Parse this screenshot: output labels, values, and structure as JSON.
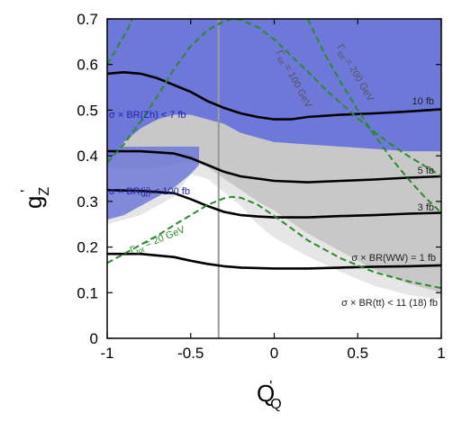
{
  "chart_data": {
    "type": "line",
    "title": "",
    "xlabel": {
      "main": "Q",
      "prime": "'",
      "sub": "Q"
    },
    "ylabel": {
      "main": "g",
      "prime": "'",
      "sub": "Z"
    },
    "xlim": [
      -1,
      1
    ],
    "ylim": [
      0,
      0.7
    ],
    "x_ticks": [
      -1,
      -0.5,
      0,
      0.5,
      1
    ],
    "x_tick_labels": [
      "-1",
      "-0.5",
      "0",
      "0.5",
      "1"
    ],
    "y_ticks": [
      0,
      0.1,
      0.2,
      0.3,
      0.4,
      0.5,
      0.6,
      0.7
    ],
    "y_tick_labels": [
      "0",
      "0.1",
      "0.2",
      "0.3",
      "0.4",
      "0.5",
      "0.6",
      "0.7"
    ],
    "vertical_line_x": -0.333,
    "regions": [
      {
        "label": "σ × BR(Zh) < 7 fb",
        "color": "#6e78d8",
        "lower_x": [
          -1,
          -0.9,
          -0.8,
          -0.7,
          -0.6,
          -0.5,
          -0.4,
          -0.3,
          -0.2,
          -0.1,
          0,
          0.2,
          0.4,
          0.6,
          0.8,
          1
        ],
        "lower_y": [
          0.38,
          0.43,
          0.46,
          0.48,
          0.49,
          0.49,
          0.48,
          0.47,
          0.45,
          0.44,
          0.43,
          0.425,
          0.42,
          0.415,
          0.41,
          0.41
        ]
      },
      {
        "label": "σ × BR(jj) < 100 fb",
        "color": "#6e78d8",
        "lower_x": [
          -1,
          -0.9,
          -0.8,
          -0.7,
          -0.6,
          -0.5,
          -0.45
        ],
        "lower_y": [
          0.26,
          0.27,
          0.29,
          0.31,
          0.33,
          0.36,
          0.38
        ]
      },
      {
        "label": "σ × BR(tt) < 11 (18) fb",
        "color": "#c8c8c8",
        "lower_x": [
          -1,
          -0.8,
          -0.6,
          -0.5,
          -0.4,
          -0.3,
          -0.2,
          -0.1,
          0,
          0.2,
          0.4,
          0.6,
          0.8,
          1
        ],
        "lower_y": [
          0.37,
          0.37,
          0.38,
          0.39,
          0.375,
          0.35,
          0.325,
          0.3,
          0.28,
          0.23,
          0.19,
          0.15,
          0.12,
          0.1
        ],
        "light_lower_x": [
          -1,
          -0.8,
          -0.6,
          -0.5,
          -0.4,
          -0.3,
          -0.2,
          -0.1,
          0,
          0.2,
          0.4,
          0.6,
          0.8,
          1
        ],
        "light_lower_y": [
          0.25,
          0.27,
          0.31,
          0.36,
          0.35,
          0.32,
          0.29,
          0.25,
          0.22,
          0.18,
          0.145,
          0.115,
          0.095,
          0.085
        ],
        "light_color": "#e6e6e6"
      }
    ],
    "series": [
      {
        "label": "10 fb",
        "style": "solid",
        "color": "#000000",
        "x": [
          -1,
          -0.9,
          -0.8,
          -0.7,
          -0.6,
          -0.5,
          -0.4,
          -0.3,
          -0.2,
          -0.1,
          0,
          0.1,
          0.2,
          0.4,
          0.6,
          0.8,
          1
        ],
        "y": [
          0.58,
          0.583,
          0.58,
          0.57,
          0.555,
          0.54,
          0.52,
          0.505,
          0.493,
          0.485,
          0.48,
          0.48,
          0.485,
          0.49,
          0.493,
          0.497,
          0.502
        ]
      },
      {
        "label": "5 fb",
        "style": "solid",
        "color": "#000000",
        "x": [
          -1,
          -0.8,
          -0.6,
          -0.5,
          -0.4,
          -0.3,
          -0.2,
          -0.1,
          0,
          0.2,
          0.4,
          0.6,
          0.8,
          1
        ],
        "y": [
          0.41,
          0.41,
          0.405,
          0.395,
          0.38,
          0.365,
          0.355,
          0.35,
          0.345,
          0.342,
          0.345,
          0.348,
          0.352,
          0.355
        ]
      },
      {
        "label": "3 fb",
        "style": "solid",
        "color": "#000000",
        "x": [
          -1,
          -0.8,
          -0.6,
          -0.5,
          -0.4,
          -0.3,
          -0.2,
          -0.1,
          0,
          0.2,
          0.4,
          0.6,
          0.8,
          1
        ],
        "y": [
          0.325,
          0.323,
          0.318,
          0.305,
          0.29,
          0.277,
          0.27,
          0.267,
          0.265,
          0.265,
          0.268,
          0.27,
          0.273,
          0.275
        ]
      },
      {
        "label": "σ × BR(WW) = 1 fb",
        "style": "solid",
        "color": "#000000",
        "x": [
          -1,
          -0.8,
          -0.6,
          -0.5,
          -0.4,
          -0.3,
          -0.2,
          -0.1,
          0,
          0.2,
          0.4,
          0.6,
          0.8,
          1
        ],
        "y": [
          0.185,
          0.185,
          0.178,
          0.17,
          0.163,
          0.158,
          0.155,
          0.154,
          0.153,
          0.153,
          0.155,
          0.157,
          0.158,
          0.16
        ]
      },
      {
        "label_main": "Γ",
        "label_sub": "tot",
        "label_rest": " = 20 GeV",
        "style": "dashed",
        "color": "#2a8a2a",
        "x": [
          -1,
          -0.9,
          -0.8,
          -0.7,
          -0.6,
          -0.5,
          -0.4,
          -0.3,
          -0.25,
          -0.2,
          -0.1,
          0,
          0.1,
          0.2,
          0.4,
          0.6,
          0.8,
          1
        ],
        "y": [
          0.165,
          0.185,
          0.205,
          0.225,
          0.248,
          0.27,
          0.292,
          0.307,
          0.31,
          0.308,
          0.293,
          0.268,
          0.242,
          0.215,
          0.175,
          0.145,
          0.125,
          0.11
        ]
      },
      {
        "label_main": "Γ",
        "label_sub": "tot",
        "label_rest": " = 100 GeV",
        "style": "dashed",
        "color": "#2a8a2a",
        "x": [
          -1,
          -0.9,
          -0.8,
          -0.7,
          -0.6,
          -0.5,
          -0.4,
          -0.3,
          -0.25,
          -0.2,
          -0.1,
          0,
          0.1,
          0.2,
          0.3,
          0.4,
          0.5,
          0.6,
          0.7,
          0.8,
          0.9,
          1
        ],
        "y": [
          0.385,
          0.425,
          0.475,
          0.53,
          0.59,
          0.64,
          0.675,
          0.695,
          0.7,
          0.698,
          0.682,
          0.655,
          0.62,
          0.585,
          0.548,
          0.515,
          0.482,
          0.452,
          0.425,
          0.4,
          0.378,
          0.355
        ]
      },
      {
        "label_main": "Γ",
        "label_sub": "tot",
        "label_rest": " = 200 GeV",
        "style": "dashed",
        "color": "#2a8a2a",
        "x": [
          0.2,
          0.3,
          0.4,
          0.5,
          0.6,
          0.7,
          0.8,
          0.9,
          1
        ],
        "y": [
          0.7,
          0.625,
          0.56,
          0.5,
          0.445,
          0.395,
          0.35,
          0.31,
          0.275
        ]
      },
      {
        "label": "",
        "style": "dashed",
        "color": "#2a8a2a",
        "x": [
          -1,
          -0.96,
          -0.92,
          -0.88,
          -0.85
        ],
        "y": [
          0.6,
          0.625,
          0.65,
          0.675,
          0.7
        ]
      }
    ]
  }
}
